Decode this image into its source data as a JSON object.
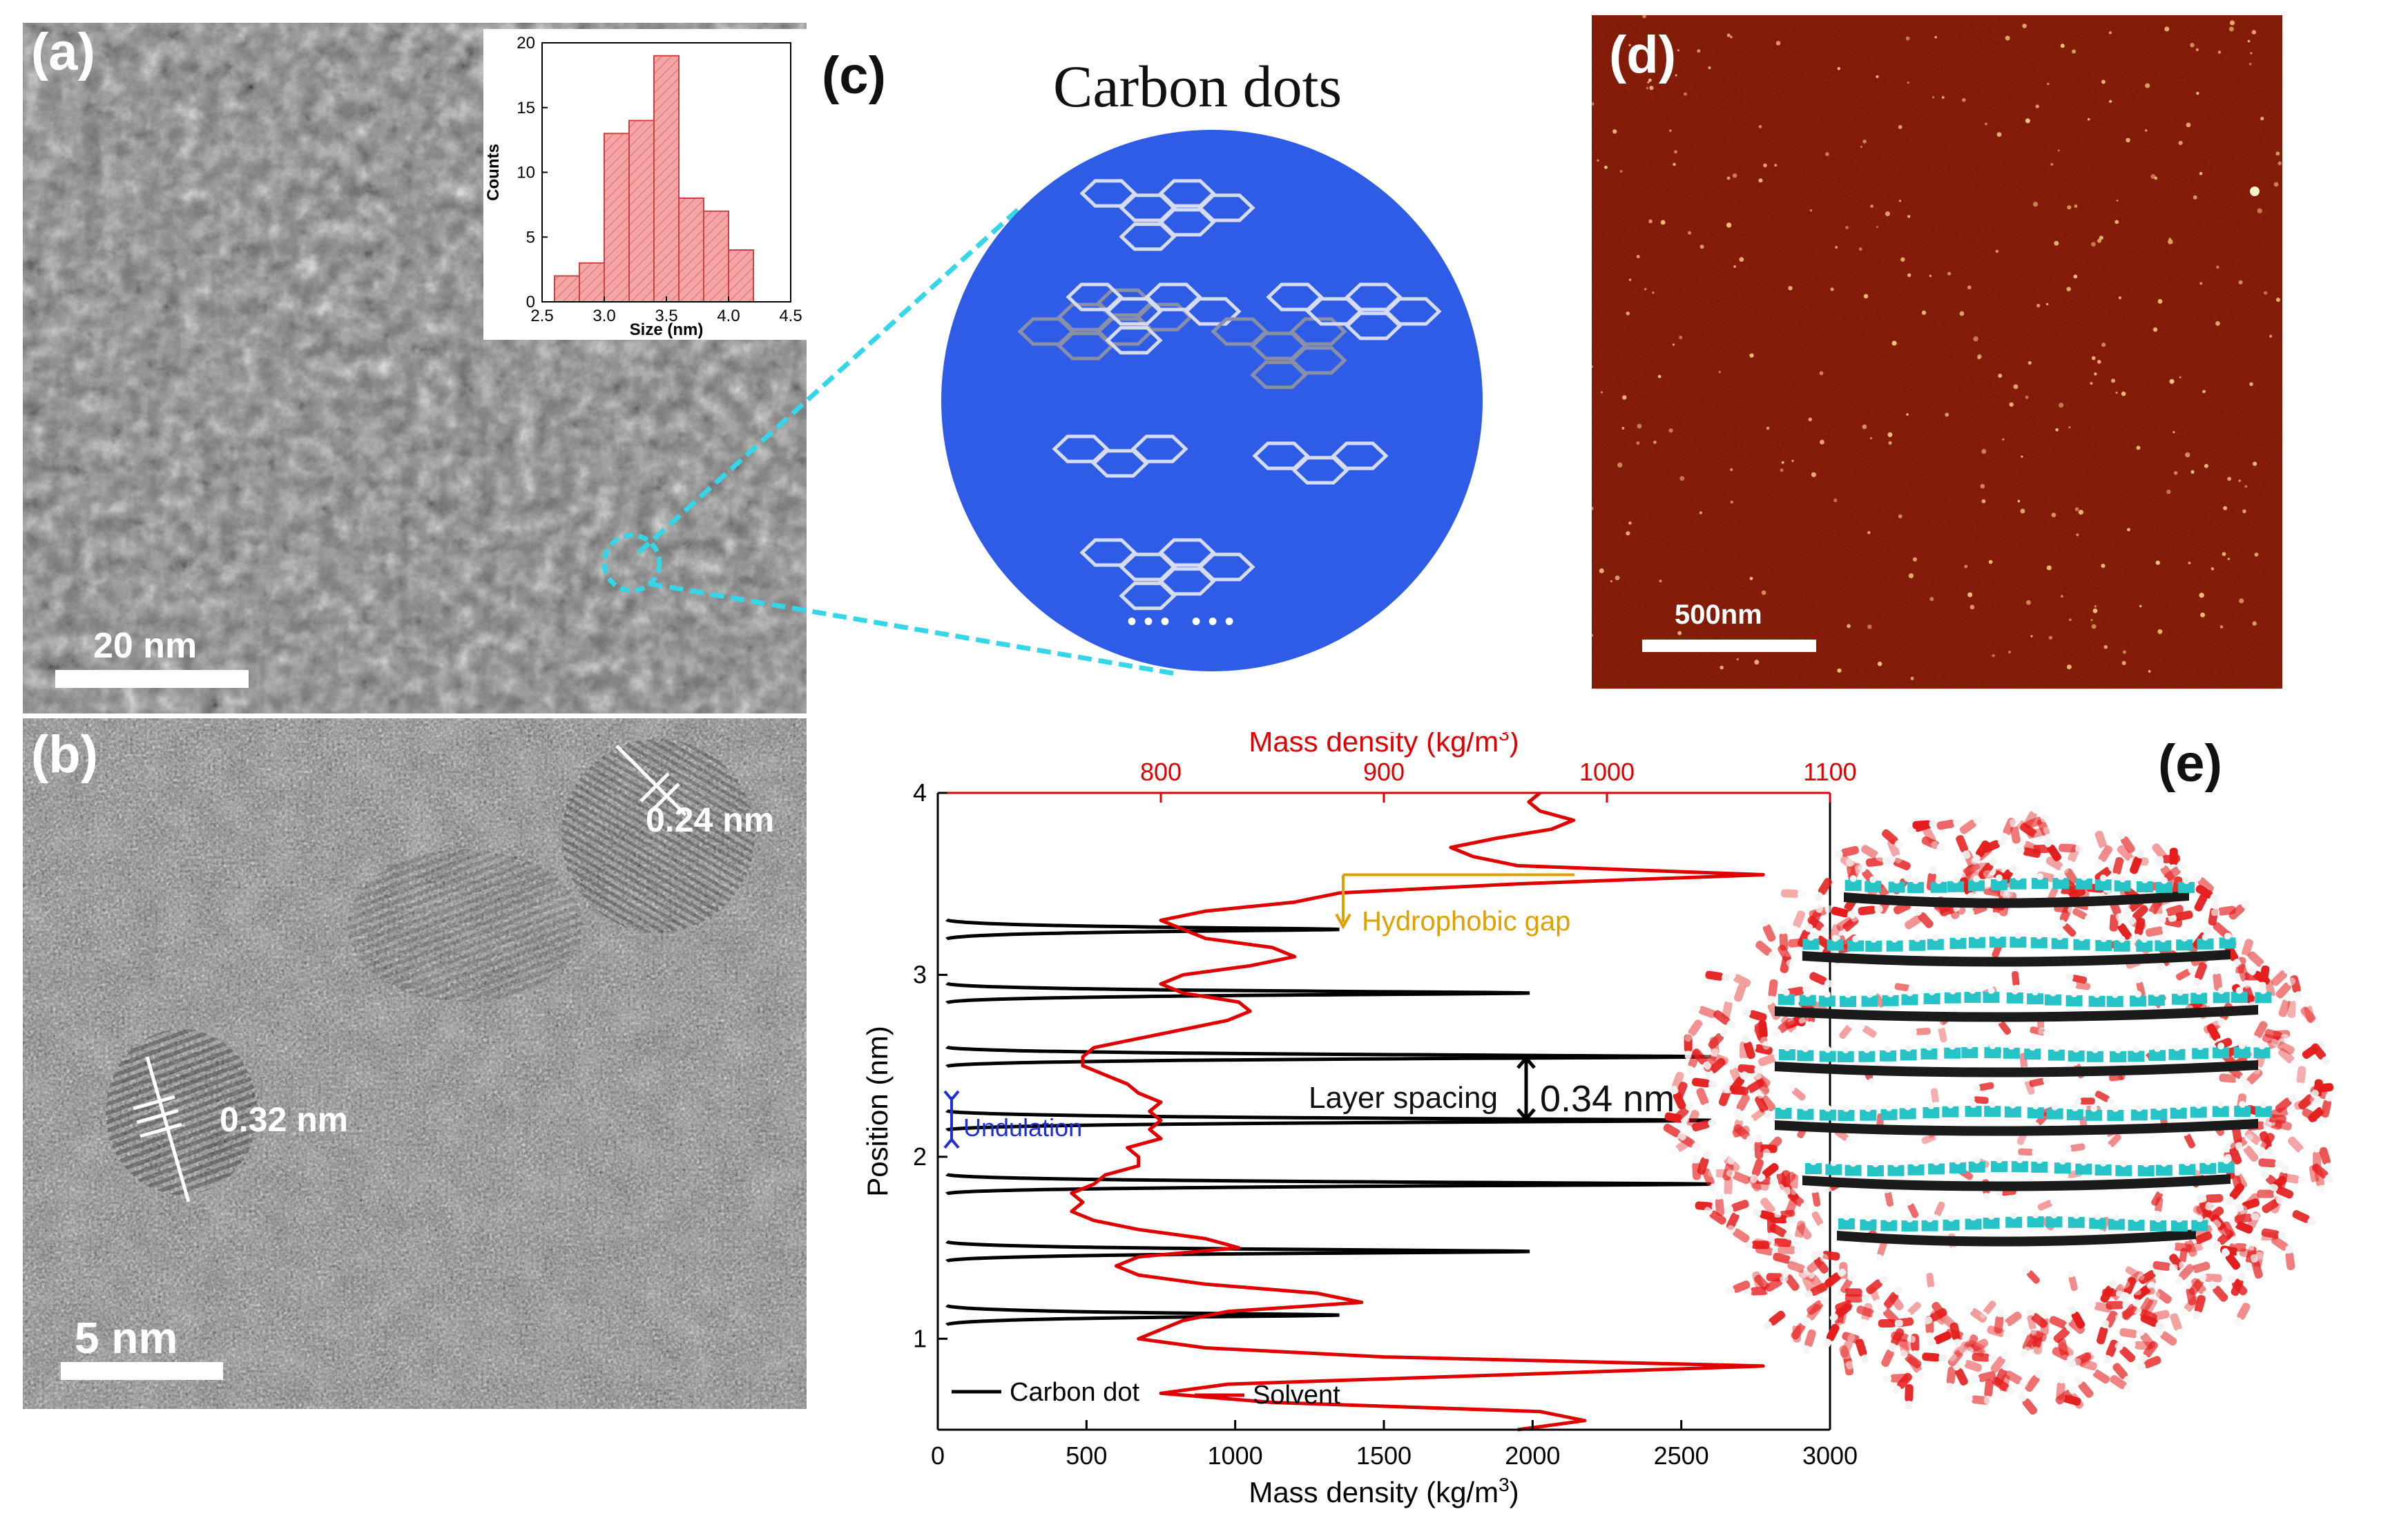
{
  "figure": {
    "panel_labels": {
      "a": "(a)",
      "b": "(b)",
      "c": "(c)",
      "d": "(d)",
      "e": "(e)"
    },
    "panel_a": {
      "scale_bar": "20 nm"
    },
    "panel_b": {
      "scale_bar": "5 nm",
      "lattice_1": "0.32 nm",
      "lattice_2": "0.24 nm"
    },
    "panel_c": {
      "title": "Carbon dots",
      "ellipsis": "••• •••",
      "circle_color": "#2f5ce6",
      "zoom_line_color": "#35d6e8"
    },
    "panel_d": {
      "scale_bar": "500nm",
      "background_color": "#7a1204"
    },
    "panel_e": {
      "hydrophobic_gap": "Hydrophobic gap",
      "layer_spacing": "Layer spacing",
      "layer_spacing_value": "0.34 nm",
      "undulation": "Undulation"
    }
  },
  "chart_data": [
    {
      "id": "inset_histogram",
      "type": "bar",
      "xlabel": "Size (nm)",
      "ylabel": "Counts",
      "x_ticks": [
        "2.5",
        "3.0",
        "3.5",
        "4.0",
        "4.5"
      ],
      "y_ticks": [
        "0",
        "5",
        "10",
        "15",
        "20"
      ],
      "xlim": [
        2.5,
        4.5
      ],
      "ylim": [
        0,
        20
      ],
      "bin_width": 0.2,
      "bin_starts": [
        2.6,
        2.8,
        3.0,
        3.2,
        3.4,
        3.6,
        3.8,
        4.0
      ],
      "values": [
        2,
        3,
        13,
        14,
        19,
        8,
        7,
        4
      ],
      "bar_color": "#f4a6a6"
    },
    {
      "id": "mass_density_profile",
      "type": "line",
      "xlabel": "Mass density (kg/m",
      "xlabel_sup": "3",
      "xlabel_end": ")",
      "top_xlabel": "Mass density (kg/m",
      "top_xlabel_sup": "3",
      "top_xlabel_end": ")",
      "ylabel": "Position (nm)",
      "xlim": [
        0,
        3000
      ],
      "top_xlim": [
        700,
        1100
      ],
      "ylim": [
        0.5,
        4
      ],
      "x_ticks": [
        "0",
        "500",
        "1000",
        "1500",
        "2000",
        "2500",
        "3000"
      ],
      "top_x_ticks": [
        "800",
        "900",
        "1000",
        "1100"
      ],
      "y_ticks": [
        "1",
        "2",
        "3",
        "4"
      ],
      "legend": [
        "Carbon dot",
        "Solvent"
      ],
      "series_colors": {
        "carbon": "#000000",
        "solvent": "#e00000",
        "top_axis": "#e00000"
      },
      "carbon_peaks": [
        {
          "y": 1.13,
          "x": 1350
        },
        {
          "y": 1.48,
          "x": 1990
        },
        {
          "y": 1.85,
          "x": 2600
        },
        {
          "y": 2.2,
          "x": 2600
        },
        {
          "y": 2.55,
          "x": 2600
        },
        {
          "y": 2.9,
          "x": 1990
        },
        {
          "y": 3.25,
          "x": 1350
        }
      ],
      "solvent_points": [
        [
          0.5,
          960
        ],
        [
          0.55,
          990
        ],
        [
          0.6,
          970
        ],
        [
          0.65,
          850
        ],
        [
          0.7,
          800
        ],
        [
          0.75,
          830
        ],
        [
          0.8,
          950
        ],
        [
          0.85,
          1070
        ],
        [
          0.9,
          900
        ],
        [
          0.95,
          820
        ],
        [
          1.0,
          790
        ],
        [
          1.05,
          800
        ],
        [
          1.1,
          810
        ],
        [
          1.15,
          830
        ],
        [
          1.2,
          890
        ],
        [
          1.25,
          870
        ],
        [
          1.3,
          820
        ],
        [
          1.35,
          790
        ],
        [
          1.4,
          780
        ],
        [
          1.45,
          790
        ],
        [
          1.5,
          835
        ],
        [
          1.55,
          820
        ],
        [
          1.6,
          790
        ],
        [
          1.65,
          770
        ],
        [
          1.7,
          760
        ],
        [
          1.75,
          765
        ],
        [
          1.8,
          760
        ],
        [
          1.85,
          770
        ],
        [
          1.9,
          775
        ],
        [
          1.95,
          790
        ],
        [
          2.0,
          790
        ],
        [
          2.05,
          785
        ],
        [
          2.1,
          800
        ],
        [
          2.15,
          795
        ],
        [
          2.2,
          800
        ],
        [
          2.25,
          795
        ],
        [
          2.3,
          800
        ],
        [
          2.35,
          790
        ],
        [
          2.4,
          785
        ],
        [
          2.45,
          775
        ],
        [
          2.5,
          765
        ],
        [
          2.55,
          765
        ],
        [
          2.6,
          770
        ],
        [
          2.65,
          790
        ],
        [
          2.7,
          810
        ],
        [
          2.75,
          830
        ],
        [
          2.8,
          840
        ],
        [
          2.85,
          835
        ],
        [
          2.9,
          810
        ],
        [
          2.95,
          800
        ],
        [
          3.0,
          810
        ],
        [
          3.05,
          840
        ],
        [
          3.1,
          860
        ],
        [
          3.15,
          850
        ],
        [
          3.2,
          820
        ],
        [
          3.25,
          810
        ],
        [
          3.3,
          800
        ],
        [
          3.35,
          820
        ],
        [
          3.4,
          860
        ],
        [
          3.45,
          880
        ],
        [
          3.5,
          960
        ],
        [
          3.55,
          1070
        ],
        [
          3.6,
          960
        ],
        [
          3.65,
          940
        ],
        [
          3.7,
          930
        ],
        [
          3.75,
          950
        ],
        [
          3.8,
          975
        ],
        [
          3.85,
          985
        ],
        [
          3.9,
          970
        ],
        [
          3.95,
          965
        ],
        [
          4.0,
          970
        ]
      ]
    }
  ]
}
